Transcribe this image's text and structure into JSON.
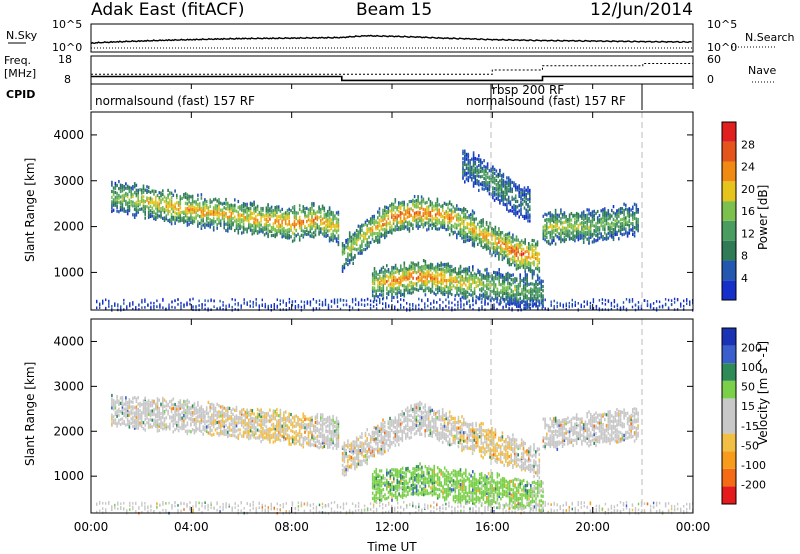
{
  "header": {
    "station": "Adak East (fitACF)",
    "beam": "Beam 15",
    "date": "12/Jun/2014"
  },
  "nsky_panel": {
    "left_label": "N.Sky",
    "right_label": "N.Search",
    "left_ticks": [
      "10^5",
      "10^0"
    ],
    "right_ticks": [
      "10^5",
      "10^0"
    ]
  },
  "freq_panel": {
    "left_label_line1": "Freq.",
    "left_label_line2": "[MHz]",
    "left_ticks": [
      "18",
      "8"
    ],
    "right_ticks": [
      "60",
      "0"
    ],
    "right_label": "Nave"
  },
  "cpid_panel": {
    "label": "CPID",
    "programs": [
      "normalsound (fast) 157 RF",
      "rbsp 200 RF",
      "normalsound (fast) 157 RF"
    ]
  },
  "x_axis": {
    "label": "Time UT",
    "ticks": [
      "00:00",
      "04:00",
      "08:00",
      "12:00",
      "16:00",
      "20:00",
      "00:00"
    ]
  },
  "y_axis": {
    "label": "Slant Range [km]",
    "ticks": [
      "1000",
      "2000",
      "3000",
      "4000"
    ]
  },
  "colors": {
    "power_scale": [
      "#1530c8",
      "#2458b0",
      "#2e7b55",
      "#4b9c60",
      "#7cc14e",
      "#e6c41b",
      "#f08a12",
      "#e4541b",
      "#e01f1f"
    ],
    "velocity_scale": [
      "#e41a1c",
      "#f56a14",
      "#f89b1a",
      "#f2be43",
      "#c8c8c8",
      "#c8c8c8",
      "#7bd04a",
      "#2e8b57",
      "#3a5fcd",
      "#1a33b5"
    ]
  },
  "chart_data": [
    {
      "type": "line",
      "title": "N.Sky / N.Search",
      "x_range_hours": [
        0,
        24
      ],
      "y_scale": "log",
      "ylim": [
        1,
        100000
      ],
      "series": [
        {
          "name": "N.Sky",
          "x": [
            0,
            2,
            4,
            6,
            8,
            10,
            11,
            12,
            14,
            16,
            18,
            20,
            22,
            24
          ],
          "y": [
            30,
            80,
            150,
            250,
            300,
            400,
            900,
            700,
            300,
            150,
            100,
            80,
            60,
            50
          ]
        }
      ]
    },
    {
      "type": "line",
      "title": "Freq. [MHz] / Nave",
      "x_range_hours": [
        0,
        24
      ],
      "ylim": [
        8,
        18
      ],
      "series": [
        {
          "name": "Freq.",
          "x": [
            0,
            10,
            10,
            18,
            18,
            24
          ],
          "y": [
            10.5,
            10.5,
            9.0,
            9.0,
            10.5,
            10.5
          ]
        },
        {
          "name": "Nave",
          "x": [
            0,
            16,
            16,
            18,
            18,
            22,
            22,
            24
          ],
          "y": [
            20,
            20,
            30,
            30,
            40,
            40,
            45,
            45
          ]
        }
      ]
    },
    {
      "type": "heatmap",
      "title": "Power [dB]",
      "x_range_hours": [
        0,
        24
      ],
      "xlabel": "Time UT",
      "ylabel": "Slant Range [km]",
      "ylim": [
        180,
        4500
      ],
      "colorbar": {
        "label": "Power [dB]",
        "ticks": [
          4,
          8,
          12,
          16,
          20,
          24,
          28
        ],
        "range": [
          0,
          30
        ]
      },
      "bands": [
        {
          "t": [
            0.8,
            2,
            4,
            6,
            8,
            9,
            9.9
          ],
          "range_km": [
            2700,
            2600,
            2400,
            2250,
            2100,
            2200,
            2000
          ],
          "peak_db": [
            14,
            18,
            22,
            20,
            24,
            22,
            20
          ]
        },
        {
          "t": [
            10,
            11,
            12,
            13,
            14,
            15,
            16,
            17,
            17.9
          ],
          "range_km": [
            1400,
            1900,
            2250,
            2350,
            2300,
            2050,
            1750,
            1450,
            1350
          ],
          "peak_db": [
            16,
            20,
            24,
            24,
            22,
            20,
            22,
            26,
            20
          ]
        },
        {
          "t": [
            11.2,
            12,
            13,
            14,
            15,
            16,
            17,
            18
          ],
          "range_km": [
            800,
            850,
            950,
            900,
            800,
            750,
            650,
            600
          ],
          "peak_db": [
            18,
            22,
            24,
            22,
            18,
            16,
            14,
            12
          ]
        },
        {
          "t": [
            18,
            19,
            20,
            21,
            21.8
          ],
          "range_km": [
            2000,
            2050,
            2050,
            2150,
            2200
          ],
          "peak_db": [
            16,
            18,
            14,
            14,
            12
          ]
        },
        {
          "t": [
            14.8,
            15.5,
            16,
            16.5,
            17,
            17.5
          ],
          "range_km": [
            3400,
            3200,
            3000,
            2800,
            2600,
            2500
          ],
          "peak_db": [
            8,
            10,
            12,
            10,
            8,
            8
          ]
        }
      ]
    },
    {
      "type": "heatmap",
      "title": "Velocity [m s-1]",
      "x_range_hours": [
        0,
        24
      ],
      "xlabel": "Time UT",
      "ylabel": "Slant Range [km]",
      "ylim": [
        180,
        4500
      ],
      "colorbar": {
        "label": "Velocity [m s^-1]",
        "ticks": [
          200,
          100,
          50,
          15,
          -15,
          -50,
          -100,
          -200
        ],
        "range": [
          -250,
          250
        ]
      },
      "bands": [
        {
          "t": [
            0.8,
            4,
            8,
            9.9
          ],
          "range_km": [
            2500,
            2350,
            2100,
            2000
          ],
          "velocity": [
            0,
            -5,
            -20,
            10
          ]
        },
        {
          "t": [
            10,
            13,
            16,
            17.9
          ],
          "range_km": [
            1400,
            2350,
            1750,
            1350
          ],
          "velocity": [
            -10,
            0,
            -20,
            0
          ]
        },
        {
          "t": [
            11.2,
            13,
            15,
            18
          ],
          "range_km": [
            800,
            950,
            800,
            600
          ],
          "velocity": [
            40,
            45,
            35,
            20
          ]
        },
        {
          "t": [
            18,
            21.8
          ],
          "range_km": [
            2000,
            2200
          ],
          "velocity": [
            0,
            0
          ]
        }
      ]
    }
  ]
}
